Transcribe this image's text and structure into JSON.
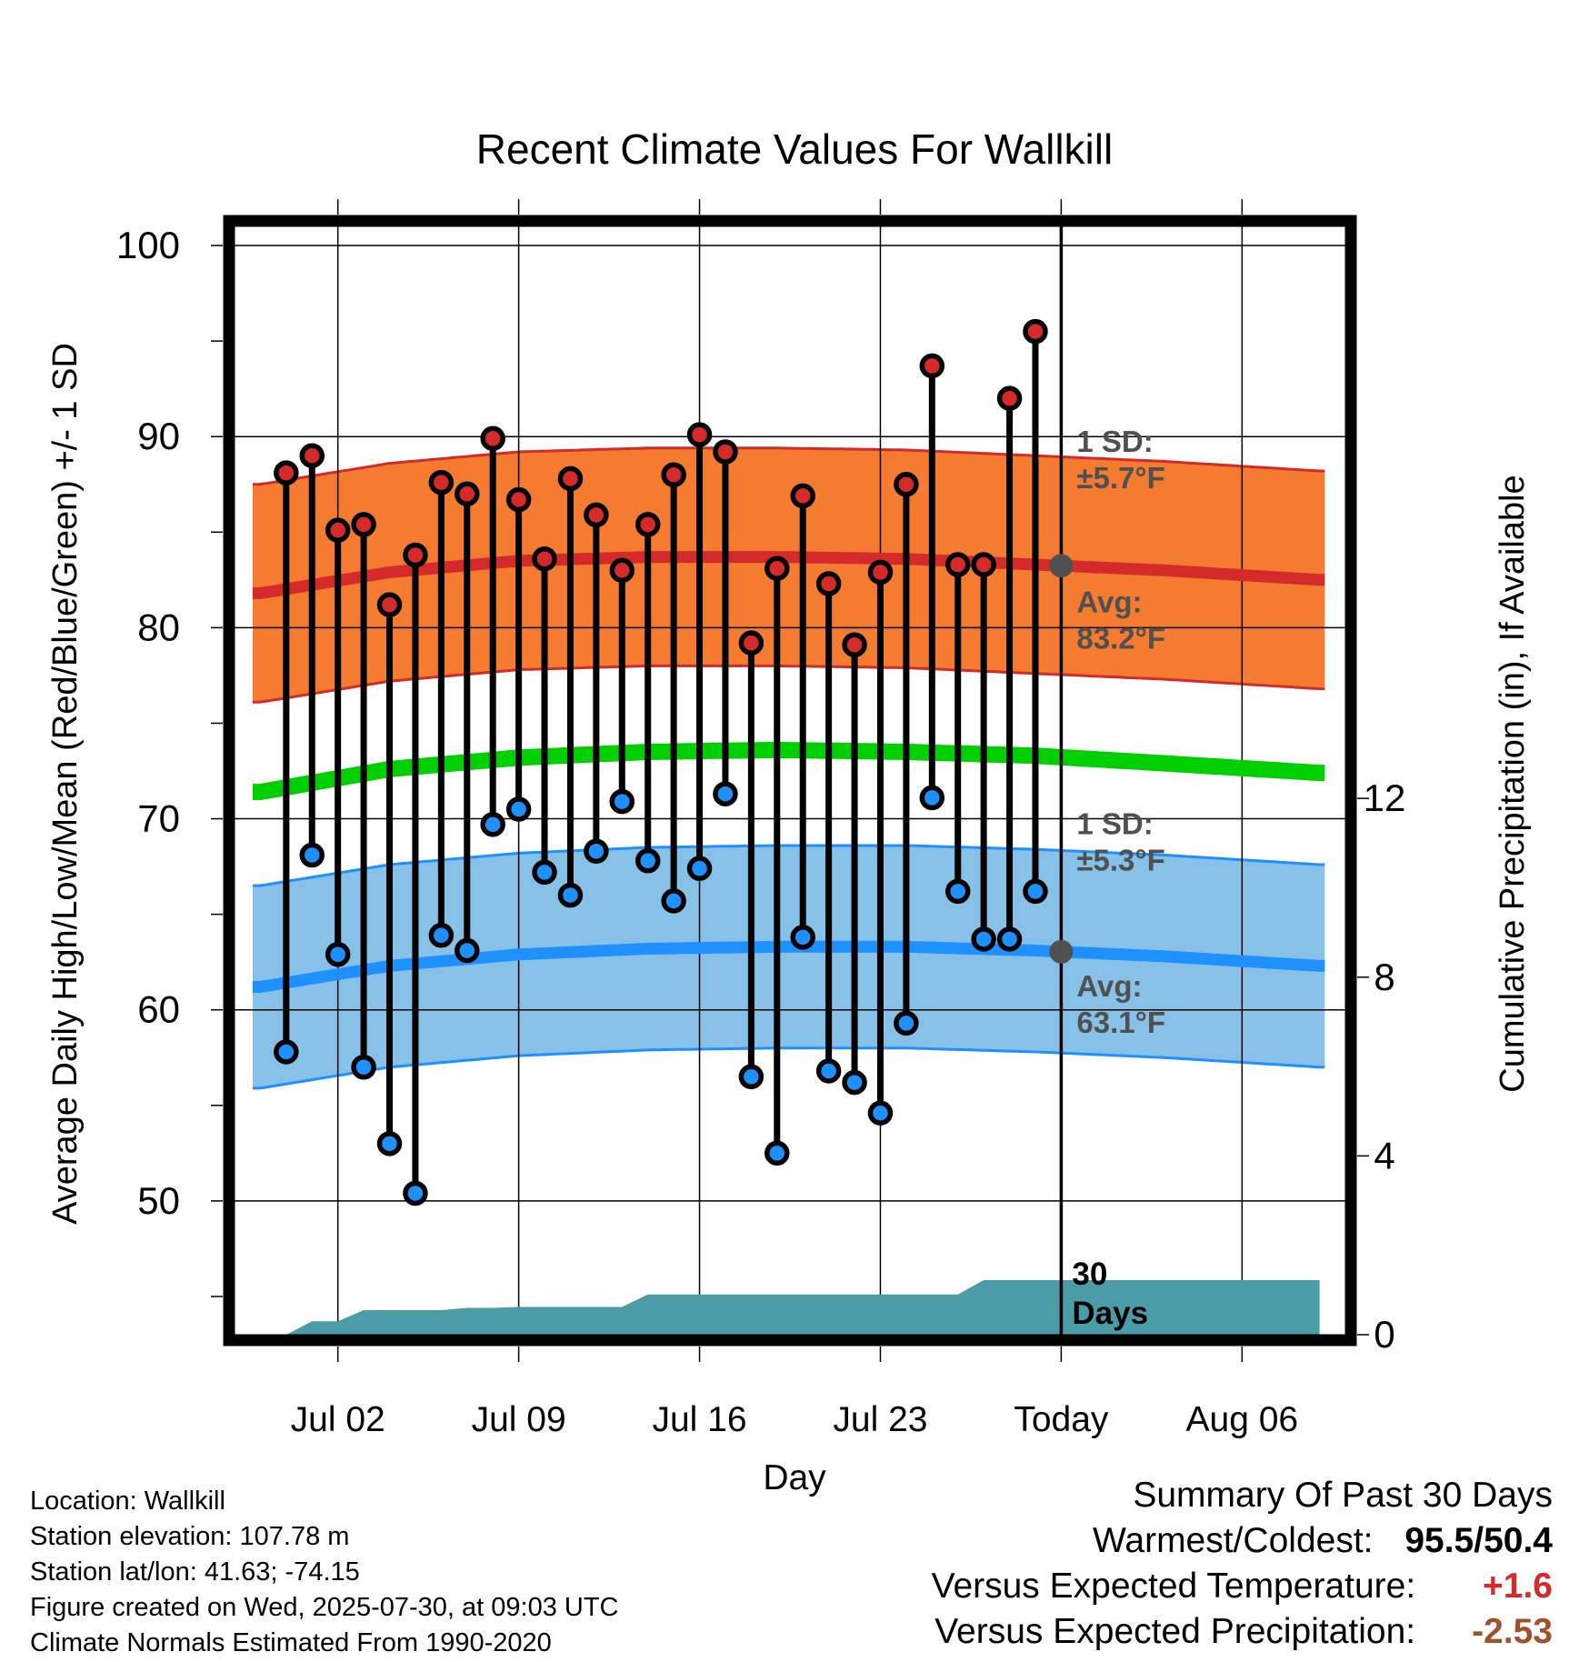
{
  "chart_data": {
    "type": "line",
    "title": "Recent Climate Values For Wallkill",
    "xlabel": "Day",
    "ylabel": "Average Daily High/Low/Mean (Red/Blue/Green) +/- 1 SD",
    "ylabel_right": "Cumulative Precipitation (in), If Available",
    "ylim": [
      43,
      101
    ],
    "xlim": [
      "2025-06-28",
      "2025-08-10"
    ],
    "y_ticks": [
      "50",
      "60",
      "70",
      "80",
      "90",
      "100"
    ],
    "y2_ticks": [
      "0",
      "4",
      "8",
      "12"
    ],
    "y2_tick_values": [
      0,
      4,
      8,
      12
    ],
    "y2lim": [
      0,
      24.8
    ],
    "x_ticks": [
      {
        "date": "2025-07-02",
        "label": "Jul 02"
      },
      {
        "date": "2025-07-09",
        "label": "Jul 09"
      },
      {
        "date": "2025-07-16",
        "label": "Jul 16"
      },
      {
        "date": "2025-07-23",
        "label": "Jul 23"
      },
      {
        "date": "2025-07-30",
        "label": "Today"
      },
      {
        "date": "2025-08-06",
        "label": "Aug 06"
      }
    ],
    "today": "2025-07-30",
    "grid": true,
    "colors": {
      "high": "#d42a2a",
      "high_band": "#f47b30",
      "low": "#1e90ff",
      "low_band": "#87c1e8",
      "mean": "#00d000",
      "precip": "#4a9ca6",
      "avg_label": "#505050"
    },
    "high_band_annotation": [
      "1 SD:",
      "±5.7°F"
    ],
    "high_avg_annotation": [
      "Avg:",
      "83.2°F"
    ],
    "low_band_annotation": [
      "1 SD:",
      "±5.3°F"
    ],
    "low_avg_annotation": [
      "Avg:",
      "63.1°F"
    ],
    "precip_label": [
      "30",
      "Days"
    ],
    "normal_dates": [
      "2025-06-29",
      "2025-07-04",
      "2025-07-09",
      "2025-07-14",
      "2025-07-19",
      "2025-07-24",
      "2025-07-29",
      "2025-08-03",
      "2025-08-09"
    ],
    "normal_high": [
      81.8,
      82.9,
      83.5,
      83.7,
      83.7,
      83.6,
      83.3,
      83.0,
      82.5
    ],
    "normal_low": [
      61.2,
      62.3,
      62.9,
      63.2,
      63.3,
      63.3,
      63.1,
      62.8,
      62.3
    ],
    "normal_mean": [
      71.4,
      72.6,
      73.2,
      73.5,
      73.6,
      73.5,
      73.3,
      72.9,
      72.4
    ],
    "high_sd": 5.7,
    "low_sd": 5.3,
    "series": [
      {
        "name": "High",
        "x": [
          "2025-06-30",
          "2025-07-01",
          "2025-07-02",
          "2025-07-03",
          "2025-07-04",
          "2025-07-05",
          "2025-07-06",
          "2025-07-07",
          "2025-07-08",
          "2025-07-09",
          "2025-07-10",
          "2025-07-11",
          "2025-07-12",
          "2025-07-13",
          "2025-07-14",
          "2025-07-15",
          "2025-07-16",
          "2025-07-17",
          "2025-07-18",
          "2025-07-19",
          "2025-07-20",
          "2025-07-21",
          "2025-07-22",
          "2025-07-23",
          "2025-07-24",
          "2025-07-25",
          "2025-07-26",
          "2025-07-27",
          "2025-07-28",
          "2025-07-29"
        ],
        "values": [
          88.1,
          89.0,
          85.1,
          85.4,
          81.2,
          83.8,
          87.6,
          87.0,
          89.9,
          86.7,
          83.6,
          87.8,
          85.9,
          83.0,
          85.4,
          88.0,
          90.1,
          89.2,
          79.2,
          83.1,
          86.9,
          82.3,
          79.1,
          82.9,
          87.5,
          93.7,
          83.3,
          83.3,
          92.0,
          95.5
        ]
      },
      {
        "name": "Low",
        "x": [
          "2025-06-30",
          "2025-07-01",
          "2025-07-02",
          "2025-07-03",
          "2025-07-04",
          "2025-07-05",
          "2025-07-06",
          "2025-07-07",
          "2025-07-08",
          "2025-07-09",
          "2025-07-10",
          "2025-07-11",
          "2025-07-12",
          "2025-07-13",
          "2025-07-14",
          "2025-07-15",
          "2025-07-16",
          "2025-07-17",
          "2025-07-18",
          "2025-07-19",
          "2025-07-20",
          "2025-07-21",
          "2025-07-22",
          "2025-07-23",
          "2025-07-24",
          "2025-07-25",
          "2025-07-26",
          "2025-07-27",
          "2025-07-28",
          "2025-07-29"
        ],
        "values": [
          57.8,
          68.1,
          62.9,
          57.0,
          53.0,
          50.4,
          63.9,
          63.1,
          69.7,
          70.5,
          67.2,
          66.0,
          68.3,
          70.9,
          67.8,
          65.7,
          67.4,
          71.3,
          56.5,
          52.5,
          63.8,
          56.8,
          56.2,
          54.6,
          59.3,
          71.1,
          66.2,
          63.7,
          63.7,
          66.2
        ]
      },
      {
        "name": "Precipitation",
        "x": [
          "2025-06-29",
          "2025-06-30",
          "2025-07-01",
          "2025-07-02",
          "2025-07-03",
          "2025-07-04",
          "2025-07-05",
          "2025-07-06",
          "2025-07-07",
          "2025-07-08",
          "2025-07-09",
          "2025-07-10",
          "2025-07-11",
          "2025-07-12",
          "2025-07-13",
          "2025-07-14",
          "2025-07-15",
          "2025-07-16",
          "2025-07-17",
          "2025-07-18",
          "2025-07-19",
          "2025-07-20",
          "2025-07-21",
          "2025-07-22",
          "2025-07-23",
          "2025-07-24",
          "2025-07-25",
          "2025-07-26",
          "2025-07-27",
          "2025-07-28",
          "2025-07-29",
          "2025-07-30",
          "2025-08-09"
        ],
        "values": [
          0.0,
          0.0,
          0.3,
          0.3,
          0.55,
          0.55,
          0.55,
          0.55,
          0.6,
          0.6,
          0.62,
          0.62,
          0.62,
          0.62,
          0.62,
          0.9,
          0.9,
          0.9,
          0.9,
          0.9,
          0.9,
          0.9,
          0.9,
          0.9,
          0.9,
          0.9,
          0.9,
          0.9,
          1.22,
          1.22,
          1.22,
          1.22,
          1.22
        ]
      }
    ]
  },
  "footer": {
    "location": "Location: Wallkill",
    "elevation": "Station elevation: 107.78 m",
    "latlon": "Station lat/lon: 41.63; -74.15",
    "created": "Figure created on Wed, 2025-07-30, at 09:03 UTC",
    "normals": "Climate Normals Estimated From 1990-2020"
  },
  "summary": {
    "title": "Summary Of Past 30 Days",
    "warmest_label": "Warmest/Coldest:",
    "warmest_value": "95.5/50.4",
    "temp_label": "Versus Expected Temperature:",
    "temp_value": "+1.6",
    "temp_color": "#d42a2a",
    "precip_label": "Versus Expected Precipitation:",
    "precip_value": "-2.53",
    "precip_color": "#a0522d"
  }
}
